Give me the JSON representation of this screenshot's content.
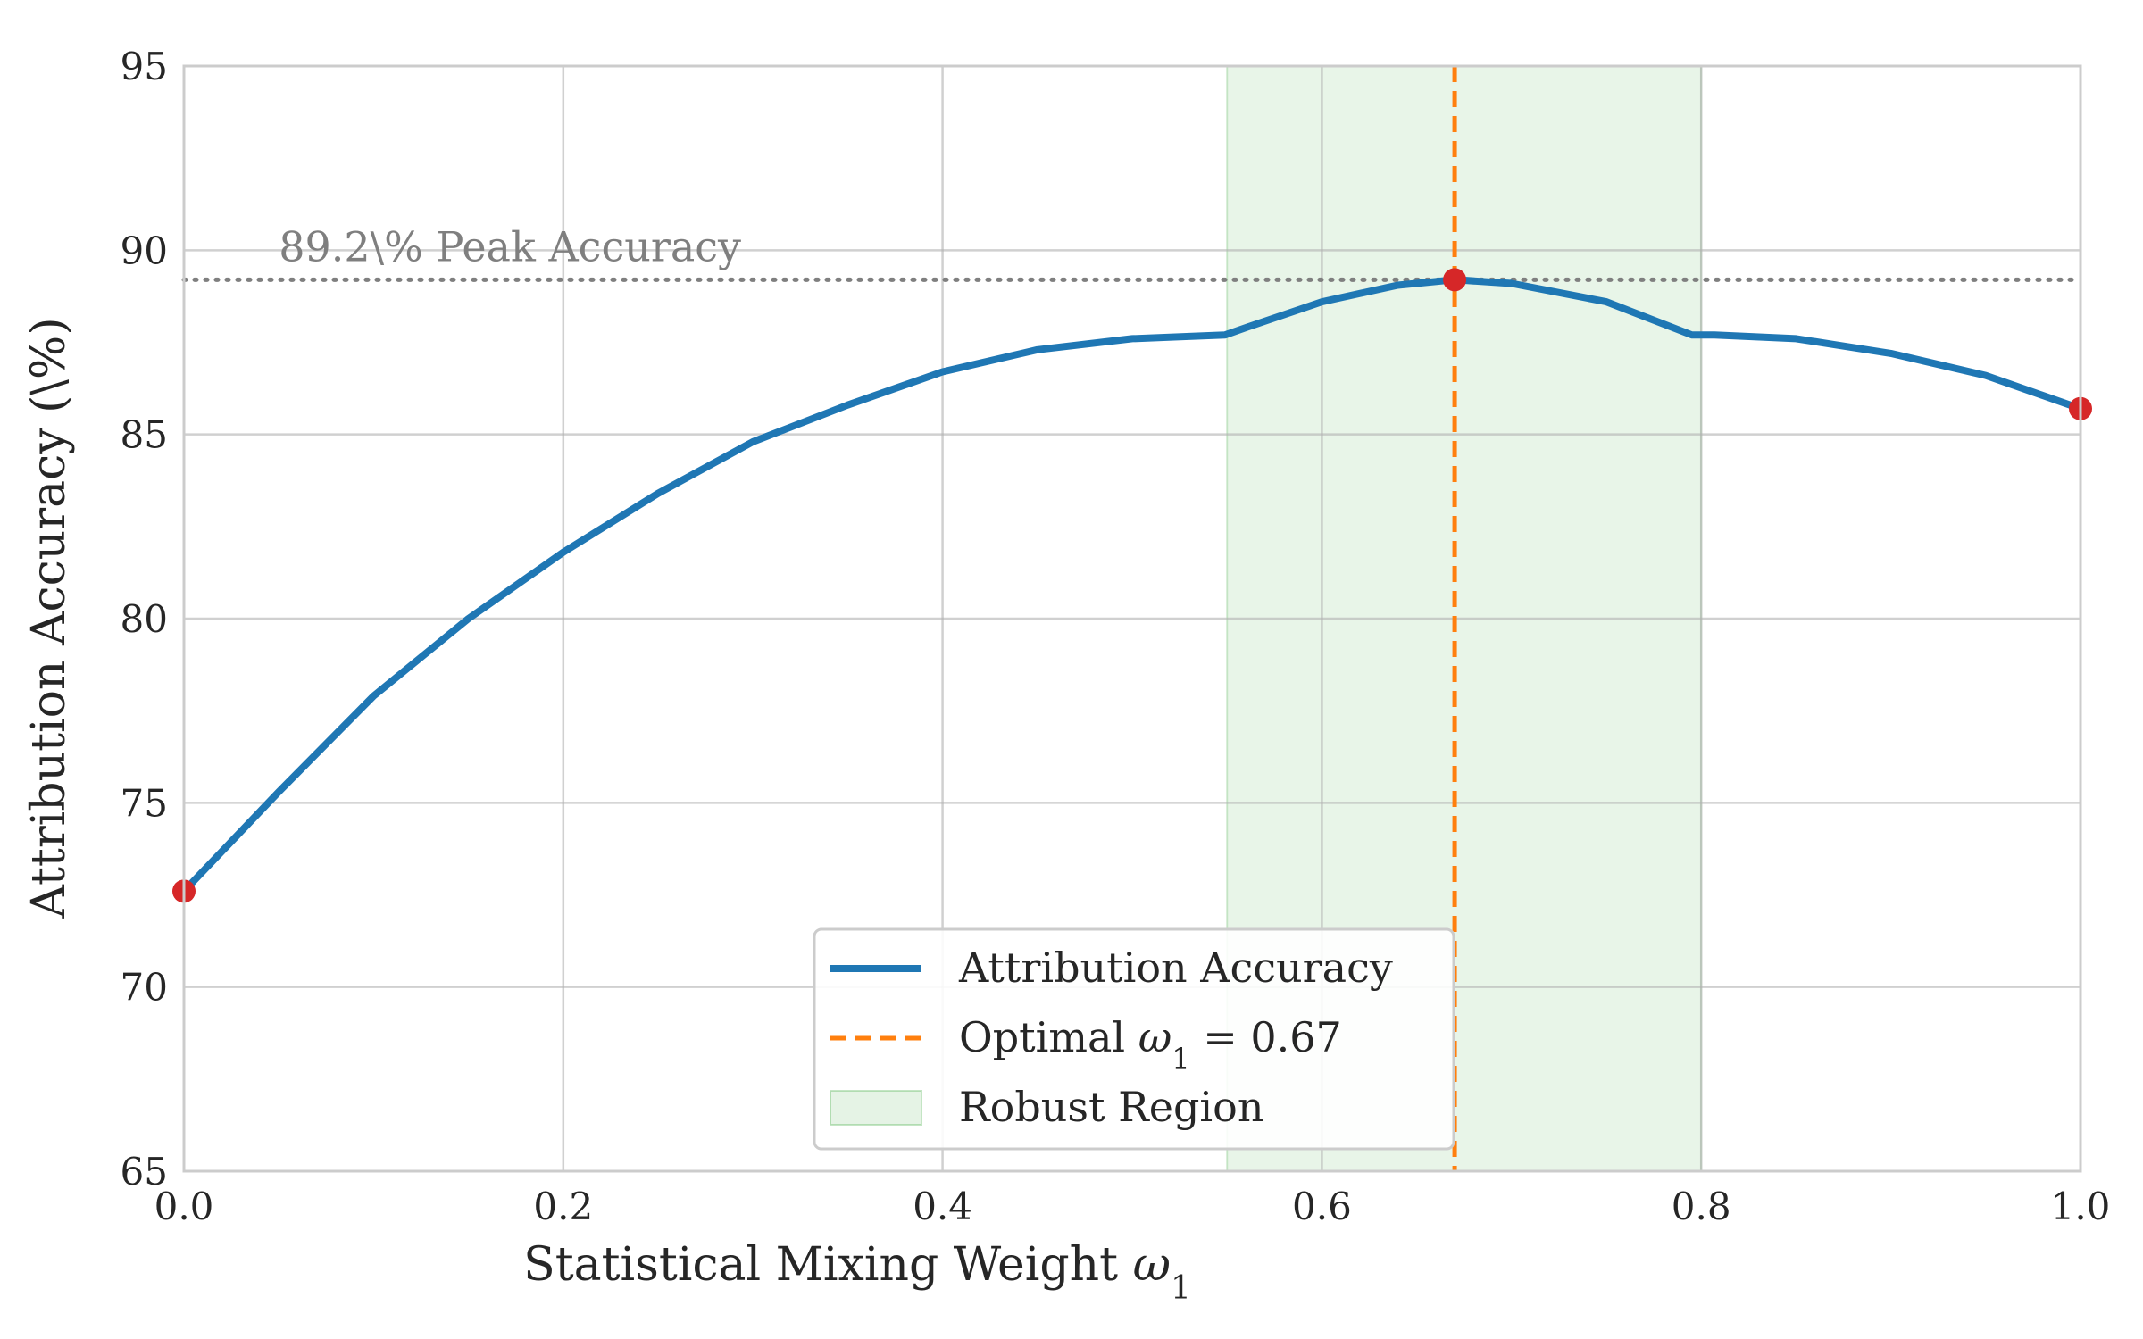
{
  "chart_data": {
    "type": "line",
    "xlabel": "Statistical Mixing Weight ",
    "xlabel_symbol": "ω",
    "xlabel_subscript": "1",
    "ylabel": "Attribution Accuracy (\\%)",
    "xlim": [
      0.0,
      1.0
    ],
    "ylim": [
      65,
      95
    ],
    "x_ticks": [
      "0.0",
      "0.2",
      "0.4",
      "0.6",
      "0.8",
      "1.0"
    ],
    "y_ticks": [
      "65",
      "70",
      "75",
      "80",
      "85",
      "90",
      "95"
    ],
    "grid": true,
    "series": [
      {
        "name": "Attribution Accuracy",
        "color": "#1f77b4",
        "x": [
          0.0,
          0.05,
          0.1,
          0.15,
          0.2,
          0.25,
          0.3,
          0.35,
          0.4,
          0.45,
          0.5,
          0.549,
          0.56,
          0.6,
          0.64,
          0.67,
          0.7,
          0.75,
          0.795,
          0.807,
          0.85,
          0.9,
          0.95,
          1.0
        ],
        "y": [
          72.6,
          75.3,
          77.9,
          80.0,
          81.8,
          83.4,
          84.8,
          85.8,
          86.7,
          87.3,
          87.6,
          87.7,
          87.9,
          88.6,
          89.05,
          89.2,
          89.1,
          88.6,
          87.7,
          87.7,
          87.6,
          87.2,
          86.6,
          85.7
        ]
      }
    ],
    "highlight_points": [
      {
        "x": 0.0,
        "y": 72.6
      },
      {
        "x": 0.67,
        "y": 89.2
      },
      {
        "x": 1.0,
        "y": 85.7
      }
    ],
    "point_color": "#d62728",
    "optimal_line": {
      "x": 0.67,
      "color": "#ff7f0e",
      "label_prefix": "Optimal ",
      "label_symbol": "ω",
      "label_subscript": "1",
      "label_suffix": " = 0.67"
    },
    "robust_region": {
      "x_start": 0.55,
      "x_end": 0.8,
      "color": "#2ca02c",
      "label": "Robust Region"
    },
    "peak_line": {
      "y": 89.2,
      "color": "#7f7f7f",
      "label": "89.2\\% Peak Accuracy",
      "label_x": 0.05,
      "label_y": 90.0
    },
    "legend_position": "lower-center"
  }
}
